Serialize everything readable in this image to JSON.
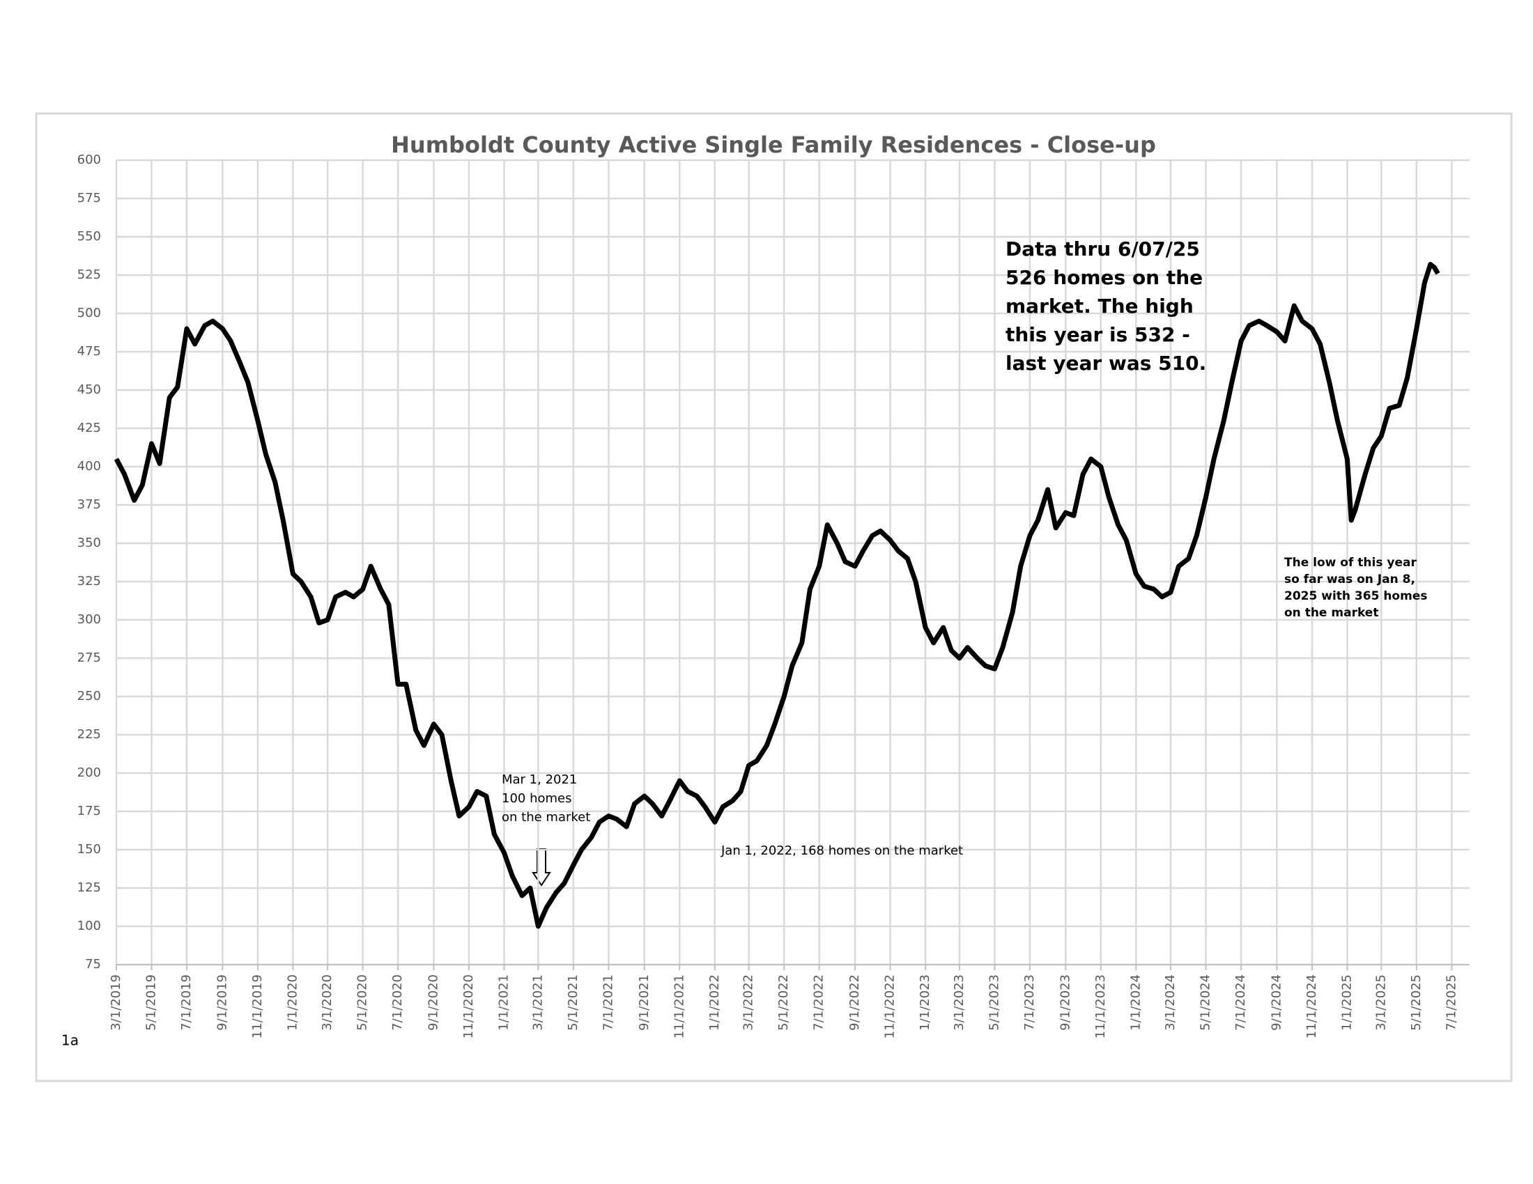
{
  "chart_data": {
    "type": "line",
    "title": "Humboldt County Active Single Family Residences - Close-up",
    "page_label": "1a",
    "annotations": [
      {
        "lines": [
          "Data thru  6/07/25",
          "526 homes on the",
          "market. The high",
          "this year is 532 -",
          "last year was 510."
        ]
      },
      {
        "lines": [
          "Mar 1, 2021",
          "100 homes",
          "on the market"
        ]
      },
      {
        "lines": [
          "Jan 1, 2022, 168 homes on the market"
        ]
      },
      {
        "lines": [
          "The low of this year",
          "so far was on Jan 8,",
          "2025 with 365 homes",
          "on the market"
        ]
      }
    ],
    "color": "#000000",
    "grid": true,
    "x": [
      "2019-03-01",
      "2019-03-15",
      "2019-04-01",
      "2019-04-15",
      "2019-05-01",
      "2019-05-15",
      "2019-06-01",
      "2019-06-15",
      "2019-07-01",
      "2019-07-15",
      "2019-08-01",
      "2019-08-15",
      "2019-09-01",
      "2019-09-15",
      "2019-10-01",
      "2019-10-15",
      "2019-11-01",
      "2019-11-15",
      "2019-12-01",
      "2019-12-15",
      "2020-01-01",
      "2020-01-15",
      "2020-02-01",
      "2020-02-15",
      "2020-03-01",
      "2020-03-15",
      "2020-04-01",
      "2020-04-15",
      "2020-05-01",
      "2020-05-15",
      "2020-06-01",
      "2020-06-15",
      "2020-07-01",
      "2020-07-15",
      "2020-08-01",
      "2020-08-15",
      "2020-09-01",
      "2020-09-15",
      "2020-10-01",
      "2020-10-15",
      "2020-11-01",
      "2020-11-15",
      "2020-12-01",
      "2020-12-15",
      "2021-01-01",
      "2021-01-15",
      "2021-02-01",
      "2021-02-15",
      "2021-03-01",
      "2021-03-15",
      "2021-04-01",
      "2021-04-15",
      "2021-05-01",
      "2021-05-15",
      "2021-06-01",
      "2021-06-15",
      "2021-07-01",
      "2021-07-15",
      "2021-08-01",
      "2021-08-15",
      "2021-09-01",
      "2021-09-15",
      "2021-10-01",
      "2021-10-15",
      "2021-11-01",
      "2021-11-15",
      "2021-12-01",
      "2021-12-15",
      "2022-01-01",
      "2022-01-15",
      "2022-02-01",
      "2022-02-15",
      "2022-03-01",
      "2022-03-15",
      "2022-04-01",
      "2022-04-15",
      "2022-05-01",
      "2022-05-15",
      "2022-06-01",
      "2022-06-15",
      "2022-07-01",
      "2022-07-15",
      "2022-08-01",
      "2022-08-15",
      "2022-09-01",
      "2022-09-15",
      "2022-10-01",
      "2022-10-15",
      "2022-11-01",
      "2022-11-15",
      "2022-12-01",
      "2022-12-15",
      "2023-01-01",
      "2023-01-15",
      "2023-02-01",
      "2023-02-15",
      "2023-03-01",
      "2023-03-15",
      "2023-04-01",
      "2023-04-15",
      "2023-05-01",
      "2023-05-15",
      "2023-06-01",
      "2023-06-15",
      "2023-07-01",
      "2023-07-15",
      "2023-08-01",
      "2023-08-15",
      "2023-09-01",
      "2023-09-15",
      "2023-10-01",
      "2023-10-15",
      "2023-11-01",
      "2023-11-15",
      "2023-12-01",
      "2023-12-15",
      "2024-01-01",
      "2024-01-15",
      "2024-02-01",
      "2024-02-15",
      "2024-03-01",
      "2024-03-15",
      "2024-04-01",
      "2024-04-15",
      "2024-05-01",
      "2024-05-15",
      "2024-06-01",
      "2024-06-15",
      "2024-07-01",
      "2024-07-15",
      "2024-08-01",
      "2024-08-15",
      "2024-09-01",
      "2024-09-15",
      "2024-10-01",
      "2024-10-15",
      "2024-11-01",
      "2024-11-15",
      "2024-12-01",
      "2024-12-15",
      "2025-01-01",
      "2025-01-08",
      "2025-01-15",
      "2025-02-01",
      "2025-02-15",
      "2025-03-01",
      "2025-03-15",
      "2025-04-01",
      "2025-04-15",
      "2025-05-01",
      "2025-05-15",
      "2025-05-25",
      "2025-06-01",
      "2025-06-07"
    ],
    "values": [
      405,
      395,
      378,
      388,
      415,
      402,
      445,
      452,
      490,
      480,
      492,
      495,
      490,
      482,
      468,
      455,
      430,
      408,
      390,
      365,
      330,
      325,
      315,
      298,
      300,
      315,
      318,
      315,
      320,
      335,
      320,
      310,
      258,
      258,
      228,
      218,
      232,
      225,
      195,
      172,
      178,
      188,
      185,
      160,
      148,
      133,
      120,
      125,
      100,
      112,
      122,
      128,
      140,
      150,
      158,
      168,
      172,
      170,
      165,
      180,
      185,
      180,
      172,
      182,
      195,
      188,
      185,
      178,
      168,
      178,
      182,
      188,
      205,
      208,
      218,
      232,
      250,
      270,
      285,
      320,
      335,
      362,
      350,
      338,
      335,
      345,
      355,
      358,
      352,
      345,
      340,
      325,
      295,
      285,
      295,
      280,
      275,
      282,
      275,
      270,
      268,
      282,
      305,
      335,
      355,
      365,
      385,
      360,
      370,
      368,
      395,
      405,
      400,
      380,
      362,
      352,
      330,
      322,
      320,
      315,
      318,
      335,
      340,
      355,
      380,
      405,
      430,
      455,
      482,
      492,
      495,
      492,
      488,
      482,
      505,
      495,
      490,
      480,
      455,
      430,
      405,
      365,
      372,
      395,
      412,
      420,
      438,
      440,
      458,
      490,
      520,
      532,
      530,
      526
    ],
    "xlim": [
      "2019-03-01",
      "2025-08-01"
    ],
    "xticks": [
      {
        "value": "2019-03-01",
        "label": "3/1/2019"
      },
      {
        "value": "2019-05-01",
        "label": "5/1/2019"
      },
      {
        "value": "2019-07-01",
        "label": "7/1/2019"
      },
      {
        "value": "2019-09-01",
        "label": "9/1/2019"
      },
      {
        "value": "2019-11-01",
        "label": "11/1/2019"
      },
      {
        "value": "2020-01-01",
        "label": "1/1/2020"
      },
      {
        "value": "2020-03-01",
        "label": "3/1/2020"
      },
      {
        "value": "2020-05-01",
        "label": "5/1/2020"
      },
      {
        "value": "2020-07-01",
        "label": "7/1/2020"
      },
      {
        "value": "2020-09-01",
        "label": "9/1/2020"
      },
      {
        "value": "2020-11-01",
        "label": "11/1/2020"
      },
      {
        "value": "2021-01-01",
        "label": "1/1/2021"
      },
      {
        "value": "2021-03-01",
        "label": "3/1/2021"
      },
      {
        "value": "2021-05-01",
        "label": "5/1/2021"
      },
      {
        "value": "2021-07-01",
        "label": "7/1/2021"
      },
      {
        "value": "2021-09-01",
        "label": "9/1/2021"
      },
      {
        "value": "2021-11-01",
        "label": "11/1/2021"
      },
      {
        "value": "2022-01-01",
        "label": "1/1/2022"
      },
      {
        "value": "2022-03-01",
        "label": "3/1/2022"
      },
      {
        "value": "2022-05-01",
        "label": "5/1/2022"
      },
      {
        "value": "2022-07-01",
        "label": "7/1/2022"
      },
      {
        "value": "2022-09-01",
        "label": "9/1/2022"
      },
      {
        "value": "2022-11-01",
        "label": "11/1/2022"
      },
      {
        "value": "2023-01-01",
        "label": "1/1/2023"
      },
      {
        "value": "2023-03-01",
        "label": "3/1/2023"
      },
      {
        "value": "2023-05-01",
        "label": "5/1/2023"
      },
      {
        "value": "2023-07-01",
        "label": "7/1/2023"
      },
      {
        "value": "2023-09-01",
        "label": "9/1/2023"
      },
      {
        "value": "2023-11-01",
        "label": "11/1/2023"
      },
      {
        "value": "2024-01-01",
        "label": "1/1/2024"
      },
      {
        "value": "2024-03-01",
        "label": "3/1/2024"
      },
      {
        "value": "2024-05-01",
        "label": "5/1/2024"
      },
      {
        "value": "2024-07-01",
        "label": "7/1/2024"
      },
      {
        "value": "2024-09-01",
        "label": "9/1/2024"
      },
      {
        "value": "2024-11-01",
        "label": "11/1/2024"
      },
      {
        "value": "2025-01-01",
        "label": "1/1/2025"
      },
      {
        "value": "2025-03-01",
        "label": "3/1/2025"
      },
      {
        "value": "2025-05-01",
        "label": "5/1/2025"
      },
      {
        "value": "2025-07-01",
        "label": "7/1/2025"
      }
    ],
    "ylim": [
      75,
      600
    ],
    "yticks": [
      75,
      100,
      125,
      150,
      175,
      200,
      225,
      250,
      275,
      300,
      325,
      350,
      375,
      400,
      425,
      450,
      475,
      500,
      525,
      550,
      575,
      600
    ]
  }
}
